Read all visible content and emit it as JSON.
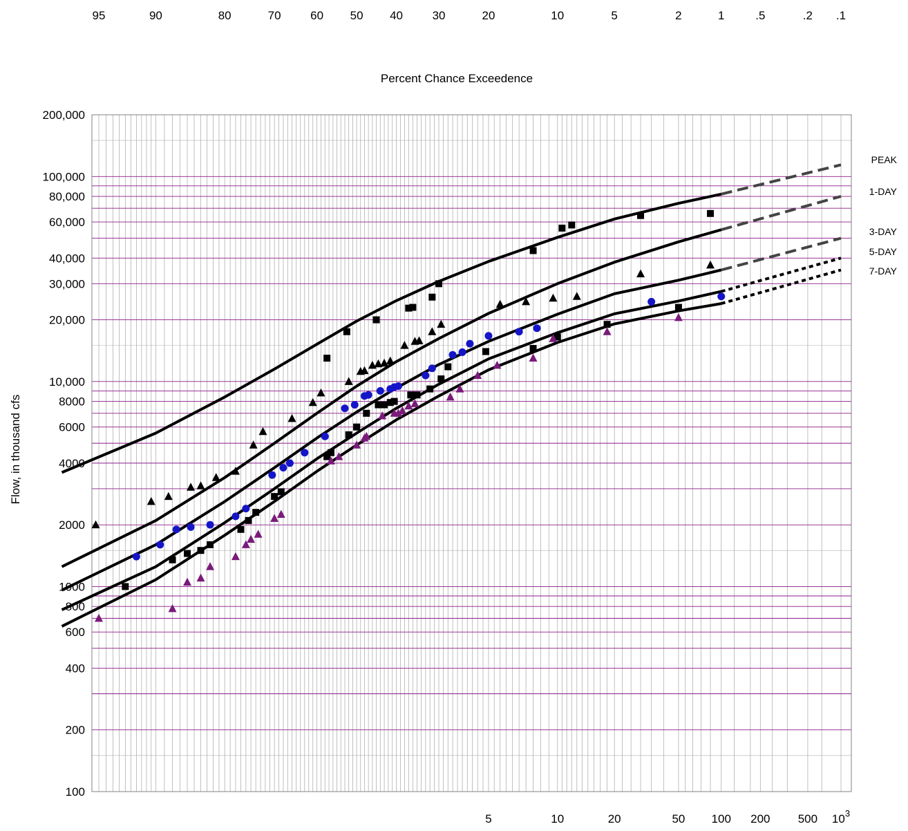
{
  "chart_data": {
    "type": "scatter",
    "title": "",
    "xlabel_top": "Percent Chance Exceedence",
    "ylabel": "Flow, in thousand cfs",
    "y_scale": "log",
    "ylim": [
      100,
      200000
    ],
    "top_ticks": [
      {
        "label": "95",
        "p": 95
      },
      {
        "label": "90",
        "p": 90
      },
      {
        "label": "80",
        "p": 80
      },
      {
        "label": "70",
        "p": 70
      },
      {
        "label": "60",
        "p": 60
      },
      {
        "label": "50",
        "p": 50
      },
      {
        "label": "40",
        "p": 40
      },
      {
        "label": "30",
        "p": 30
      },
      {
        "label": "20",
        "p": 20
      },
      {
        "label": "10",
        "p": 10
      },
      {
        "label": "5",
        "p": 5
      },
      {
        "label": "2",
        "p": 2
      },
      {
        "label": "1",
        "p": 1
      },
      {
        "label": ".5",
        "p": 0.5
      },
      {
        "label": ".2",
        "p": 0.2
      },
      {
        "label": ".1",
        "p": 0.1
      }
    ],
    "bottom_ticks": [
      {
        "label": "5",
        "T": 5
      },
      {
        "label": "10",
        "T": 10
      },
      {
        "label": "20",
        "T": 20
      },
      {
        "label": "50",
        "T": 50
      },
      {
        "label": "100",
        "T": 100
      },
      {
        "label": "200",
        "T": 200
      },
      {
        "label": "500",
        "T": 500
      },
      {
        "label": "10",
        "sup": "3",
        "T": 1000
      }
    ],
    "y_ticks": [
      {
        "label": "200,000",
        "v": 200000
      },
      {
        "label": "100,000",
        "v": 100000
      },
      {
        "label": "80,000",
        "v": 80000
      },
      {
        "label": "60,000",
        "v": 60000
      },
      {
        "label": "40,000",
        "v": 40000
      },
      {
        "label": "30,000",
        "v": 30000
      },
      {
        "label": "20,000",
        "v": 20000
      },
      {
        "label": "10,000",
        "v": 10000
      },
      {
        "label": "8000",
        "v": 8000
      },
      {
        "label": "6000",
        "v": 6000
      },
      {
        "label": "4000",
        "v": 4000
      },
      {
        "label": "2000",
        "v": 2000
      },
      {
        "label": "1000",
        "v": 1000
      },
      {
        "label": "800",
        "v": 800
      },
      {
        "label": "600",
        "v": 600
      },
      {
        "label": "400",
        "v": 400
      },
      {
        "label": "200",
        "v": 200
      },
      {
        "label": "100",
        "v": 100
      }
    ],
    "grid": true,
    "colors": {
      "grid_gray": "#b0b0b0",
      "grid_purple": "#8b1a89",
      "black": "#000000",
      "blue": "#1515c8",
      "purple": "#7a1a7a",
      "dash": "#444444"
    },
    "series": [
      {
        "name": "PEAK",
        "marker": "square",
        "color": "#000000",
        "curve": [
          [
            97,
            3600
          ],
          [
            90,
            5600
          ],
          [
            80,
            8400
          ],
          [
            70,
            11500
          ],
          [
            60,
            15200
          ],
          [
            50,
            19700
          ],
          [
            40,
            24800
          ],
          [
            30,
            30800
          ],
          [
            20,
            38500
          ],
          [
            10,
            50500
          ],
          [
            5,
            62000
          ],
          [
            2,
            74000
          ],
          [
            1,
            82000
          ]
        ],
        "extension": [
          [
            1,
            82000
          ],
          [
            0.1,
            114000
          ]
        ],
        "points": [
          [
            57.5,
            13000
          ],
          [
            52.5,
            17500
          ],
          [
            45.0,
            20000
          ],
          [
            37.0,
            22800
          ],
          [
            36.0,
            23000
          ],
          [
            31.5,
            25800
          ],
          [
            30.0,
            30000
          ],
          [
            13.0,
            43500
          ],
          [
            9.5,
            56000
          ],
          [
            8.5,
            58000
          ],
          [
            3.5,
            64500
          ],
          [
            1.2,
            66000
          ]
        ]
      },
      {
        "name": "1-DAY",
        "marker": "triangle",
        "color": "#000000",
        "curve": [
          [
            97,
            1250
          ],
          [
            90,
            2100
          ],
          [
            80,
            3400
          ],
          [
            70,
            5000
          ],
          [
            60,
            7000
          ],
          [
            50,
            9500
          ],
          [
            40,
            12500
          ],
          [
            30,
            16200
          ],
          [
            20,
            21500
          ],
          [
            10,
            30000
          ],
          [
            5,
            38200
          ],
          [
            2,
            48000
          ],
          [
            1,
            55000
          ]
        ],
        "extension": [
          [
            1,
            55000
          ],
          [
            0.1,
            80000
          ]
        ],
        "points": [
          [
            95.2,
            2000
          ],
          [
            90.5,
            2600
          ],
          [
            88.5,
            2750
          ],
          [
            85.5,
            3050
          ],
          [
            84.0,
            3100
          ],
          [
            81.5,
            3400
          ],
          [
            78.0,
            3650
          ],
          [
            74.5,
            4900
          ],
          [
            72.5,
            5700
          ],
          [
            66.0,
            6600
          ],
          [
            61.0,
            7900
          ],
          [
            59.0,
            8800
          ],
          [
            52.0,
            10000
          ],
          [
            49.0,
            11200
          ],
          [
            48.0,
            11300
          ],
          [
            46.0,
            12000
          ],
          [
            44.5,
            12200
          ],
          [
            43.0,
            12300
          ],
          [
            41.5,
            12600
          ],
          [
            38.0,
            15000
          ],
          [
            35.5,
            15700
          ],
          [
            34.5,
            15800
          ],
          [
            31.5,
            17500
          ],
          [
            29.5,
            19000
          ],
          [
            18.0,
            23800
          ],
          [
            14.0,
            24500
          ],
          [
            10.5,
            25500
          ],
          [
            8.0,
            26000
          ],
          [
            3.5,
            33500
          ],
          [
            1.2,
            37000
          ]
        ]
      },
      {
        "name": "3-DAY",
        "marker": "circle",
        "color": "#1515c8",
        "curve": [
          [
            97,
            960
          ],
          [
            90,
            1600
          ],
          [
            80,
            2600
          ],
          [
            70,
            3800
          ],
          [
            60,
            5300
          ],
          [
            50,
            7100
          ],
          [
            40,
            9300
          ],
          [
            30,
            12100
          ],
          [
            20,
            15700
          ],
          [
            10,
            21300
          ],
          [
            5,
            26800
          ],
          [
            2,
            31200
          ],
          [
            1,
            35000
          ]
        ],
        "extension": [
          [
            1,
            35000
          ],
          [
            0.1,
            50000
          ]
        ],
        "points": [
          [
            92.0,
            1400
          ],
          [
            89.5,
            1600
          ],
          [
            87.5,
            1900
          ],
          [
            85.5,
            1950
          ],
          [
            82.5,
            2000
          ],
          [
            78.0,
            2200
          ],
          [
            76.0,
            2400
          ],
          [
            70.5,
            3500
          ],
          [
            68.0,
            3800
          ],
          [
            66.5,
            4000
          ],
          [
            63.0,
            4500
          ],
          [
            58.0,
            5400
          ],
          [
            53.0,
            7400
          ],
          [
            50.5,
            7700
          ],
          [
            48.0,
            8500
          ],
          [
            47.0,
            8600
          ],
          [
            44.0,
            9000
          ],
          [
            41.5,
            9200
          ],
          [
            40.5,
            9400
          ],
          [
            39.5,
            9500
          ],
          [
            33.0,
            10700
          ],
          [
            31.5,
            11600
          ],
          [
            27.0,
            13500
          ],
          [
            25.0,
            13900
          ],
          [
            23.5,
            15300
          ],
          [
            20.0,
            16700
          ],
          [
            15.0,
            17500
          ],
          [
            12.5,
            18200
          ],
          [
            3.0,
            24500
          ],
          [
            1.0,
            26000
          ]
        ]
      },
      {
        "name": "5-DAY",
        "marker": "square",
        "color": "#000000",
        "curve": [
          [
            97,
            770
          ],
          [
            90,
            1250
          ],
          [
            80,
            2050
          ],
          [
            70,
            3000
          ],
          [
            60,
            4200
          ],
          [
            50,
            5600
          ],
          [
            40,
            7400
          ],
          [
            30,
            9700
          ],
          [
            20,
            12900
          ],
          [
            10,
            17300
          ],
          [
            5,
            21400
          ],
          [
            2,
            24700
          ],
          [
            1,
            27500
          ]
        ],
        "extension": [
          [
            1,
            27500
          ],
          [
            0.1,
            40000
          ]
        ],
        "points": [
          [
            93.0,
            1000
          ],
          [
            88.0,
            1350
          ],
          [
            86.0,
            1450
          ],
          [
            84.0,
            1500
          ],
          [
            82.5,
            1600
          ],
          [
            77.0,
            1900
          ],
          [
            75.5,
            2100
          ],
          [
            74.0,
            2300
          ],
          [
            70.0,
            2750
          ],
          [
            68.5,
            2900
          ],
          [
            57.5,
            4300
          ],
          [
            56.5,
            4500
          ],
          [
            52.0,
            5500
          ],
          [
            50.0,
            6000
          ],
          [
            47.5,
            7000
          ],
          [
            44.5,
            7700
          ],
          [
            43.0,
            7700
          ],
          [
            41.5,
            7900
          ],
          [
            40.5,
            8000
          ],
          [
            36.5,
            8600
          ],
          [
            35.0,
            8600
          ],
          [
            32.0,
            9200
          ],
          [
            29.5,
            10300
          ],
          [
            28.0,
            11800
          ],
          [
            20.5,
            14000
          ],
          [
            13.0,
            14500
          ],
          [
            10.0,
            16500
          ],
          [
            5.5,
            19000
          ],
          [
            2.0,
            23000
          ]
        ]
      },
      {
        "name": "7-DAY",
        "marker": "triangle",
        "color": "#7a1a7a",
        "curve": [
          [
            97,
            640
          ],
          [
            90,
            1080
          ],
          [
            80,
            1780
          ],
          [
            70,
            2600
          ],
          [
            60,
            3650
          ],
          [
            50,
            4900
          ],
          [
            40,
            6500
          ],
          [
            30,
            8500
          ],
          [
            20,
            11400
          ],
          [
            10,
            15500
          ],
          [
            5,
            19100
          ],
          [
            2,
            22100
          ],
          [
            1,
            24000
          ]
        ],
        "extension": [
          [
            1,
            24000
          ],
          [
            0.1,
            35000
          ]
        ],
        "points": [
          [
            95.0,
            700
          ],
          [
            88.0,
            780
          ],
          [
            86.0,
            1050
          ],
          [
            84.0,
            1100
          ],
          [
            82.5,
            1250
          ],
          [
            78.0,
            1400
          ],
          [
            76.0,
            1600
          ],
          [
            75.0,
            1700
          ],
          [
            73.5,
            1800
          ],
          [
            70.0,
            2150
          ],
          [
            68.5,
            2250
          ],
          [
            56.5,
            4100
          ],
          [
            54.5,
            4300
          ],
          [
            50.0,
            4900
          ],
          [
            48.0,
            5300
          ],
          [
            47.5,
            5400
          ],
          [
            43.5,
            6800
          ],
          [
            40.5,
            7000
          ],
          [
            39.5,
            7000
          ],
          [
            38.5,
            7200
          ],
          [
            37.0,
            7600
          ],
          [
            35.5,
            7800
          ],
          [
            27.5,
            8400
          ],
          [
            25.5,
            9200
          ],
          [
            22.0,
            10700
          ],
          [
            18.5,
            12000
          ],
          [
            13.0,
            13000
          ],
          [
            10.5,
            16200
          ],
          [
            5.5,
            17500
          ],
          [
            2.0,
            20500
          ]
        ]
      }
    ],
    "series_labels": [
      "PEAK",
      "1-DAY",
      "3-DAY",
      "5-DAY",
      "7-DAY"
    ]
  }
}
